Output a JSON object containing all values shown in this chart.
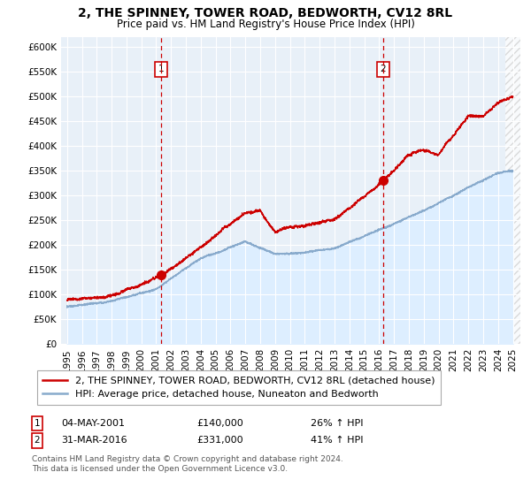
{
  "title": "2, THE SPINNEY, TOWER ROAD, BEDWORTH, CV12 8RL",
  "subtitle": "Price paid vs. HM Land Registry's House Price Index (HPI)",
  "ylim": [
    0,
    620000
  ],
  "yticks": [
    0,
    50000,
    100000,
    150000,
    200000,
    250000,
    300000,
    350000,
    400000,
    450000,
    500000,
    550000,
    600000
  ],
  "ytick_labels": [
    "£0",
    "£50K",
    "£100K",
    "£150K",
    "£200K",
    "£250K",
    "£300K",
    "£350K",
    "£400K",
    "£450K",
    "£500K",
    "£550K",
    "£600K"
  ],
  "sale1_date": "04-MAY-2001",
  "sale1_price": 140000,
  "sale1_pct": "26%",
  "sale1_year": 2001.34,
  "sale1_price_str": "£140,000",
  "sale2_date": "31-MAR-2016",
  "sale2_price": 331000,
  "sale2_pct": "41%",
  "sale2_year": 2016.25,
  "sale2_price_str": "£331,000",
  "legend_line1": "2, THE SPINNEY, TOWER ROAD, BEDWORTH, CV12 8RL (detached house)",
  "legend_line2": "HPI: Average price, detached house, Nuneaton and Bedworth",
  "footer1": "Contains HM Land Registry data © Crown copyright and database right 2024.",
  "footer2": "This data is licensed under the Open Government Licence v3.0.",
  "red_color": "#cc0000",
  "blue_color": "#88aacc",
  "fill_color": "#ddeeff",
  "background_color": "#ffffff",
  "plot_bg_color": "#e8f0f8",
  "grid_color": "#ffffff",
  "dashed_color": "#cc0000",
  "box_color": "#cc0000",
  "title_fontsize": 10,
  "subtitle_fontsize": 8.5,
  "tick_fontsize": 7.5,
  "legend_fontsize": 8,
  "footer_fontsize": 6.5,
  "xmin": 1995,
  "xmax": 2025,
  "hatch_start": 2024.5
}
